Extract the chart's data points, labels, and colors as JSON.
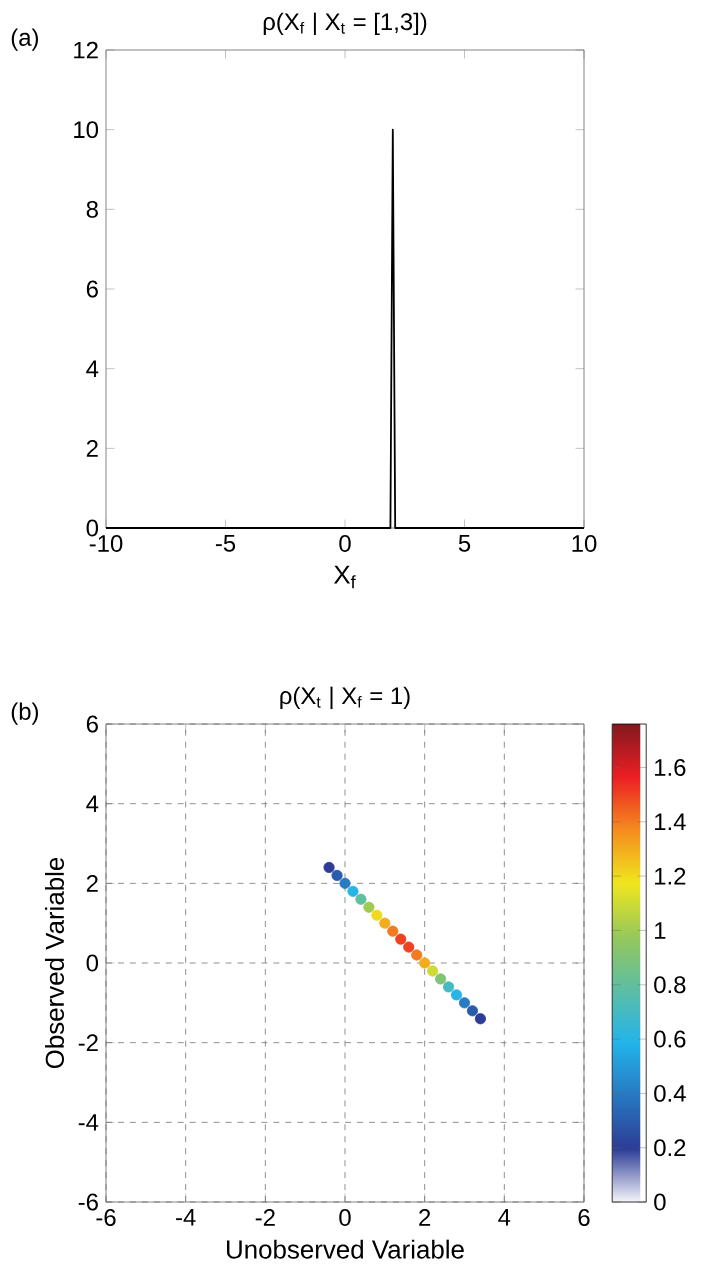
{
  "chart_data": [
    {
      "type": "line",
      "title": "ρ(X$_{f}$ | X$_{t}$ = [1,3])",
      "xlabel": "X$_{f}$",
      "annotations": [
        "(a)"
      ],
      "x": [
        -10,
        1.85,
        1.9,
        2.0,
        2.1,
        2.15,
        10
      ],
      "values": [
        0,
        0,
        0,
        10,
        0,
        0,
        0
      ],
      "color": "#000000",
      "xlim": [
        -10,
        10
      ],
      "ylim": [
        0,
        12
      ],
      "xticks": [
        -10,
        -5,
        0,
        5,
        10
      ],
      "yticks": [
        0,
        2,
        4,
        6,
        8,
        10,
        12
      ]
    },
    {
      "type": "scatter",
      "title": "ρ(X$_{t}$ | X$_{f}$ = 1)",
      "xlabel": "Unobserved Variable",
      "ylabel": "Observed Variable",
      "annotations": [
        "(b)"
      ],
      "x": [
        -0.4,
        -0.2,
        0.0,
        0.2,
        0.4,
        0.6,
        0.8,
        1.0,
        1.2,
        1.4,
        1.6,
        1.8,
        2.0,
        2.2,
        2.4,
        2.6,
        2.8,
        3.0,
        3.2,
        3.4
      ],
      "values": [
        2.4,
        2.2,
        2.0,
        1.8,
        1.6,
        1.4,
        1.2,
        1.0,
        0.8,
        0.6,
        0.4,
        0.2,
        0.0,
        -0.2,
        -0.4,
        -0.6,
        -0.8,
        -1.0,
        -1.2,
        -1.4
      ],
      "cvalues": [
        0.2,
        0.3,
        0.4,
        0.6,
        0.8,
        1.0,
        1.2,
        1.3,
        1.4,
        1.5,
        1.5,
        1.4,
        1.3,
        1.1,
        0.9,
        0.7,
        0.6,
        0.4,
        0.3,
        0.2
      ],
      "marker": "circle",
      "clim": [
        0,
        1.76
      ],
      "cticks": [
        0,
        0.2,
        0.4,
        0.6,
        0.8,
        1,
        1.2,
        1.4,
        1.6
      ],
      "xlim": [
        -6,
        6
      ],
      "ylim": [
        -6,
        6
      ],
      "xticks": [
        -6,
        -4,
        -2,
        0,
        2,
        4,
        6
      ],
      "yticks": [
        -6,
        -4,
        -2,
        0,
        2,
        4,
        6
      ],
      "grid": true
    }
  ]
}
